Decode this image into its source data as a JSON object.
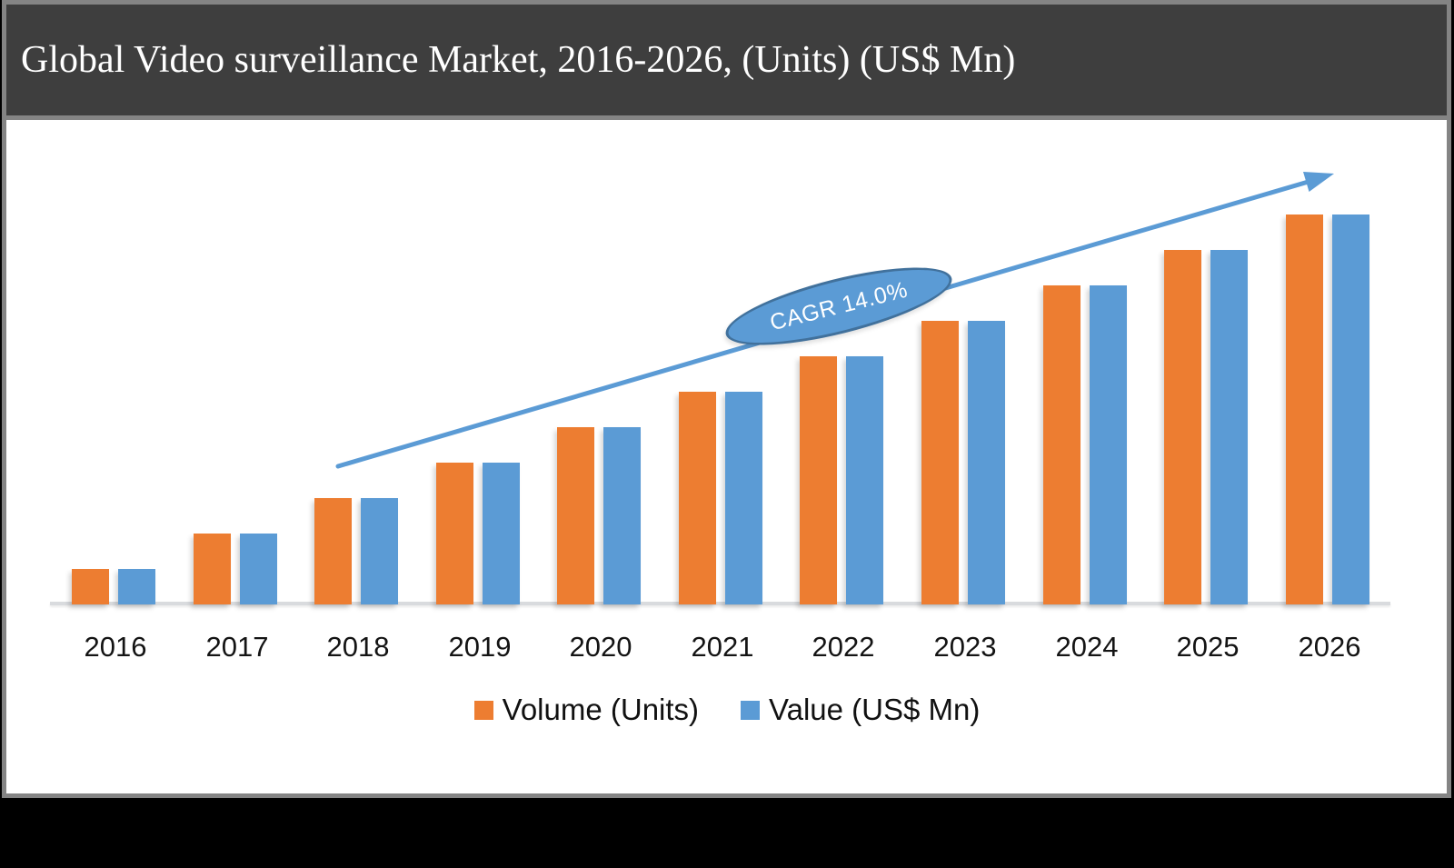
{
  "header": {
    "title": "Global Video surveillance Market, 2016-2026, (Units) (US$ Mn)"
  },
  "chart_data": {
    "type": "bar",
    "title": "Global Video surveillance Market, 2016-2026, (Units) (US$ Mn)",
    "categories": [
      "2016",
      "2017",
      "2018",
      "2019",
      "2020",
      "2021",
      "2022",
      "2023",
      "2024",
      "2025",
      "2026"
    ],
    "series": [
      {
        "name": "Volume (Units)",
        "color": "#ED7D31",
        "values": [
          1,
          2,
          3,
          4,
          5,
          6,
          7,
          8,
          9,
          10,
          11
        ]
      },
      {
        "name": "Value (US$ Mn)",
        "color": "#5B9BD5",
        "values": [
          1,
          2,
          3,
          4,
          5,
          6,
          7,
          8,
          9,
          10,
          11
        ]
      }
    ],
    "value_units": "relative (y-axis unlabeled)",
    "xlabel": "",
    "ylabel": "",
    "gridlines": false,
    "legend_position": "bottom",
    "annotations": {
      "cagr_label": "CAGR 14.0%",
      "trend_arrow": "upward diagonal arrow across bar tops"
    }
  },
  "colors": {
    "volume_bar": "#ED7D31",
    "value_bar": "#5B9BD5",
    "trend_arrow": "#5B9BD5",
    "ellipse_fill": "#5B9BD5",
    "ellipse_border": "#41719C",
    "header_background": "#3E3E3E",
    "frame_border": "#848484",
    "axis_line": "#D9DBDE",
    "plot_background": "#FFFFFF",
    "page_background": "#000000",
    "title_text": "#FFFFFF"
  }
}
